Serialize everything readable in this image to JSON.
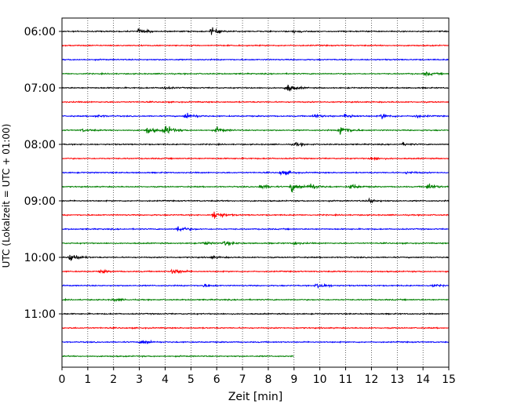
{
  "chart_data": {
    "type": "line",
    "title": "",
    "xlabel": "Zeit  [min]",
    "ylabel": "UTC (Lokalzeit = UTC + 01:00)",
    "xlim": [
      0,
      15
    ],
    "x_ticks": [
      "0",
      "1",
      "2",
      "3",
      "4",
      "5",
      "6",
      "7",
      "8",
      "9",
      "10",
      "11",
      "12",
      "13",
      "14",
      "15"
    ],
    "y_ticks": [
      "06:00",
      "07:00",
      "08:00",
      "09:00",
      "10:00",
      "11:00"
    ],
    "grid": "vertical dotted at each minute",
    "trace_interval_min": 15,
    "colors": [
      "#000000",
      "#ff0000",
      "#0000ff",
      "#008000"
    ],
    "series": [
      {
        "start": "06:00",
        "end_min": 15,
        "events": [
          [
            3.0,
            0.6
          ],
          [
            5.8,
            0.8
          ],
          [
            9.0,
            0.3
          ]
        ]
      },
      {
        "start": "06:15",
        "end_min": 15,
        "events": []
      },
      {
        "start": "06:30",
        "end_min": 15,
        "events": []
      },
      {
        "start": "06:45",
        "end_min": 15,
        "events": [
          [
            14.1,
            0.4
          ]
        ]
      },
      {
        "start": "07:00",
        "end_min": 15,
        "events": [
          [
            8.7,
            1.0
          ],
          [
            3.9,
            0.3
          ]
        ]
      },
      {
        "start": "07:15",
        "end_min": 15,
        "events": []
      },
      {
        "start": "07:30",
        "end_min": 15,
        "events": [
          [
            4.8,
            0.8
          ],
          [
            9.8,
            0.5
          ],
          [
            11.0,
            0.6
          ],
          [
            12.4,
            0.5
          ],
          [
            13.7,
            0.4
          ],
          [
            1.3,
            0.3
          ]
        ]
      },
      {
        "start": "07:45",
        "end_min": 15,
        "events": [
          [
            3.3,
            0.8
          ],
          [
            4.0,
            1.2
          ],
          [
            6.0,
            0.6
          ],
          [
            10.8,
            1.3
          ],
          [
            0.8,
            0.3
          ]
        ]
      },
      {
        "start": "08:00",
        "end_min": 15,
        "events": [
          [
            9.0,
            0.4
          ],
          [
            13.2,
            0.3
          ]
        ]
      },
      {
        "start": "08:15",
        "end_min": 15,
        "events": [
          [
            12.0,
            0.4
          ]
        ]
      },
      {
        "start": "08:30",
        "end_min": 15,
        "events": [
          [
            8.5,
            0.7
          ],
          [
            13.4,
            0.3
          ]
        ]
      },
      {
        "start": "08:45",
        "end_min": 15,
        "events": [
          [
            7.7,
            0.6
          ],
          [
            8.9,
            1.1
          ],
          [
            9.6,
            0.9
          ],
          [
            11.2,
            0.6
          ],
          [
            14.2,
            0.8
          ]
        ]
      },
      {
        "start": "09:00",
        "end_min": 15,
        "events": [
          [
            11.9,
            0.5
          ]
        ]
      },
      {
        "start": "09:15",
        "end_min": 15,
        "events": [
          [
            5.9,
            1.1
          ]
        ]
      },
      {
        "start": "09:30",
        "end_min": 15,
        "events": [
          [
            4.5,
            0.8
          ]
        ]
      },
      {
        "start": "09:45",
        "end_min": 15,
        "events": [
          [
            6.3,
            0.5
          ],
          [
            9.0,
            0.3
          ],
          [
            5.5,
            0.3
          ]
        ]
      },
      {
        "start": "10:00",
        "end_min": 15,
        "events": [
          [
            0.3,
            1.2
          ],
          [
            5.8,
            0.3
          ]
        ]
      },
      {
        "start": "10:15",
        "end_min": 15,
        "events": [
          [
            4.3,
            0.8
          ],
          [
            1.5,
            0.3
          ]
        ]
      },
      {
        "start": "10:30",
        "end_min": 15,
        "events": [
          [
            9.9,
            0.9
          ],
          [
            14.3,
            0.4
          ],
          [
            5.5,
            0.3
          ]
        ]
      },
      {
        "start": "10:45",
        "end_min": 15,
        "events": [
          [
            2.0,
            0.3
          ]
        ]
      },
      {
        "start": "11:00",
        "end_min": 15,
        "events": []
      },
      {
        "start": "11:15",
        "end_min": 15,
        "events": []
      },
      {
        "start": "11:30",
        "end_min": 15,
        "events": [
          [
            3.1,
            0.6
          ]
        ]
      },
      {
        "start": "11:45",
        "end_min": 9,
        "events": []
      }
    ]
  }
}
